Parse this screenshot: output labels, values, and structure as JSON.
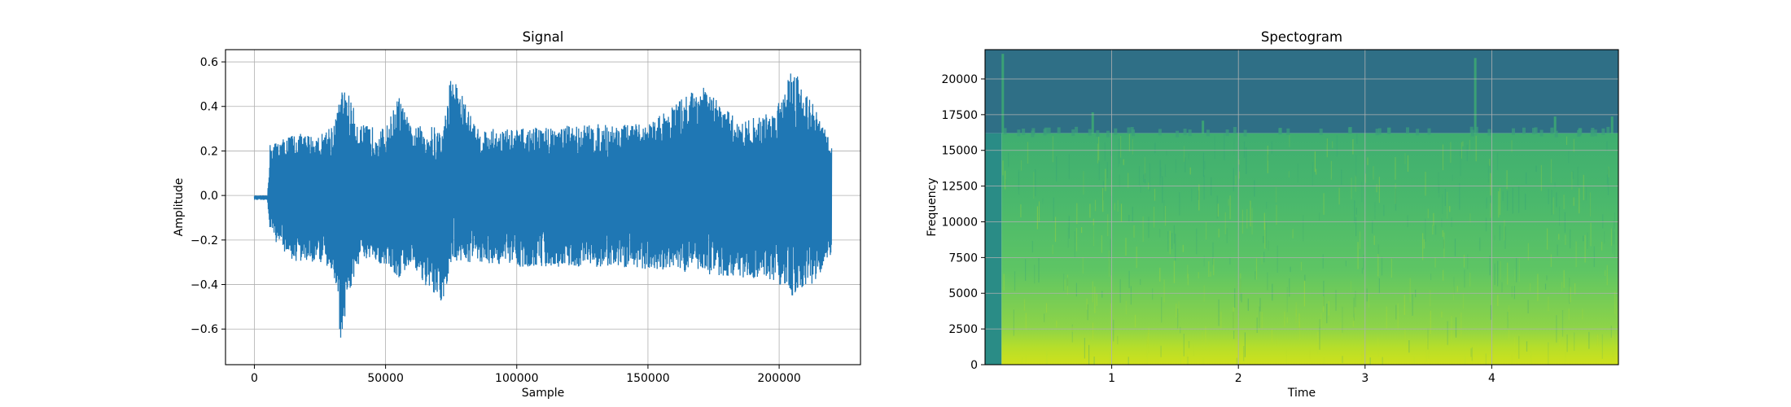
{
  "chart_data": [
    {
      "type": "line",
      "title": "Signal",
      "xlabel": "Sample",
      "ylabel": "Amplitude",
      "xlim": [
        -11000,
        231000
      ],
      "ylim": [
        -0.76,
        0.655
      ],
      "xticks": [
        0,
        50000,
        100000,
        150000,
        200000
      ],
      "xtick_labels": [
        "0",
        "50000",
        "100000",
        "150000",
        "200000"
      ],
      "yticks": [
        -0.6,
        -0.4,
        -0.2,
        0.0,
        0.2,
        0.4,
        0.6
      ],
      "ytick_labels": [
        "−0.6",
        "−0.4",
        "−0.2",
        "0.0",
        "0.2",
        "0.4",
        "0.6"
      ],
      "grid": true,
      "color": "#1f77b4",
      "series": [
        {
          "x": [
            0,
            5000,
            6000,
            15000,
            25000,
            31000,
            33000,
            35000,
            40000,
            50000,
            55000,
            60000,
            65000,
            72000,
            75000,
            85000,
            100000,
            125000,
            150000,
            170000,
            185000,
            198000,
            205000,
            213000,
            220000
          ],
          "upper": [
            0.0,
            0.0,
            0.23,
            0.28,
            0.27,
            0.35,
            0.47,
            0.49,
            0.32,
            0.3,
            0.45,
            0.3,
            0.32,
            0.3,
            0.56,
            0.3,
            0.3,
            0.32,
            0.32,
            0.5,
            0.33,
            0.38,
            0.59,
            0.41,
            0.24
          ],
          "lower": [
            -0.02,
            -0.02,
            -0.18,
            -0.3,
            -0.3,
            -0.38,
            -0.69,
            -0.5,
            -0.3,
            -0.31,
            -0.38,
            -0.3,
            -0.41,
            -0.5,
            -0.3,
            -0.3,
            -0.32,
            -0.32,
            -0.33,
            -0.35,
            -0.37,
            -0.38,
            -0.45,
            -0.4,
            -0.26
          ]
        }
      ]
    },
    {
      "type": "heatmap",
      "title": "Spectogram",
      "xlabel": "Time",
      "ylabel": "Frequency",
      "xlim": [
        0,
        5
      ],
      "ylim": [
        0,
        22050
      ],
      "xticks": [
        1,
        2,
        3,
        4
      ],
      "xtick_labels": [
        "1",
        "2",
        "3",
        "4"
      ],
      "yticks": [
        0,
        2500,
        5000,
        7500,
        10000,
        12500,
        15000,
        17500,
        20000
      ],
      "ytick_labels": [
        "0",
        "2500",
        "5000",
        "7500",
        "10000",
        "12500",
        "15000",
        "17500",
        "20000"
      ],
      "grid": true,
      "colormap": "viridis",
      "onset_time": 0.13,
      "cutoff_frequency": 16200,
      "colors": {
        "above_cutoff": "#2f6f86",
        "body": "#4dbd6e",
        "low_band": "#b7de2c",
        "pre_onset": "#2a8c86"
      }
    }
  ]
}
